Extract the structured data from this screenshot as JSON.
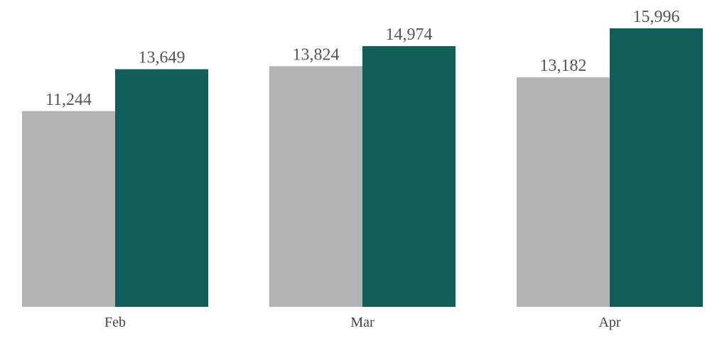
{
  "chart_data": {
    "type": "bar",
    "categories": [
      "Feb",
      "Mar",
      "Apr"
    ],
    "series": [
      {
        "values": [
          11244,
          13824,
          13182
        ],
        "color": "#b4b4b4"
      },
      {
        "values": [
          13649,
          14974,
          15996
        ],
        "color": "#0f5e5a"
      }
    ],
    "data_labels": [
      [
        "11,244",
        "13,824",
        "13,182"
      ],
      [
        "13,649",
        "14,974",
        "15,996"
      ]
    ],
    "title": "",
    "xlabel": "",
    "ylabel": "",
    "ylim": [
      0,
      16000
    ],
    "grid": false,
    "legend": "none"
  }
}
